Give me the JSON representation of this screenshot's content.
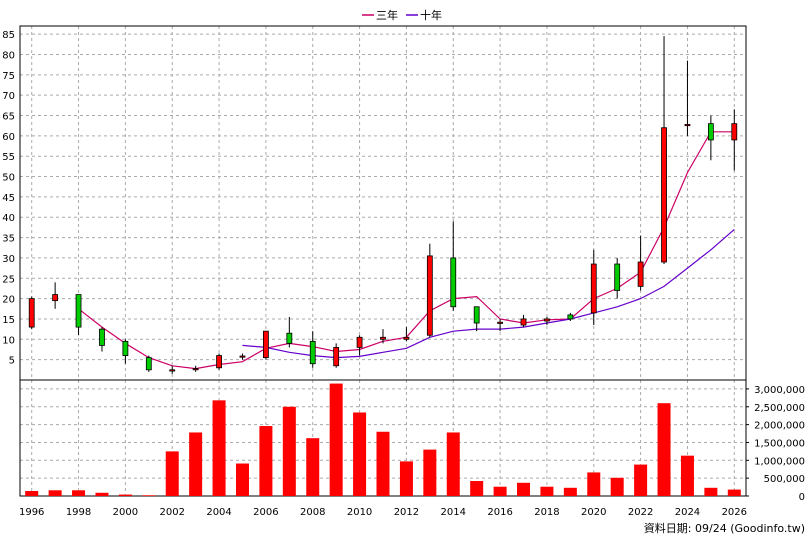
{
  "chart_data": {
    "type": "candlestick",
    "legend": [
      {
        "name": "三年",
        "color": "#cc0066"
      },
      {
        "name": "十年",
        "color": "#6600cc"
      }
    ],
    "footer": "資料日期: 09/24  (Goodinfo.tw)",
    "colors": {
      "up": "#ff0000",
      "down": "#00cc00",
      "grid": "#aaaaaa",
      "volume": "#ff0000"
    },
    "x_ticks": [
      "1996",
      "1998",
      "2000",
      "2002",
      "2004",
      "2006",
      "2008",
      "2010",
      "2012",
      "2014",
      "2016",
      "2018",
      "2020",
      "2022",
      "2024",
      "2026"
    ],
    "price_axis": {
      "ticks": [
        "5",
        "10",
        "15",
        "20",
        "25",
        "30",
        "35",
        "40",
        "45",
        "50",
        "55",
        "60",
        "65",
        "70",
        "75",
        "80",
        "85"
      ],
      "min": 0,
      "max": 87
    },
    "volume_axis": {
      "ticks": [
        "0",
        "500,000",
        "1,000,000",
        "1,500,000",
        "2,000,000",
        "2,500,000",
        "3,000,000"
      ],
      "min": 0,
      "max": 3250000
    },
    "candles": [
      {
        "year": 1996,
        "open": 20,
        "close": 13,
        "high": 20.5,
        "low": 12.5
      },
      {
        "year": 1997,
        "open": 21,
        "close": 19.5,
        "high": 24,
        "low": 17.5
      },
      {
        "year": 1998,
        "open": 13,
        "close": 21,
        "high": 21,
        "low": 11
      },
      {
        "year": 1999,
        "open": 8.5,
        "close": 12.5,
        "high": 13,
        "low": 7
      },
      {
        "year": 2000,
        "open": 6,
        "close": 9.5,
        "high": 10,
        "low": 4
      },
      {
        "year": 2001,
        "open": 2.5,
        "close": 5.5,
        "high": 6,
        "low": 2
      },
      {
        "year": 2002,
        "open": 2.5,
        "close": 2.2,
        "high": 3.5,
        "low": 1.5
      },
      {
        "year": 2003,
        "open": 2.8,
        "close": 2.7,
        "high": 3.5,
        "low": 2
      },
      {
        "year": 2004,
        "open": 6,
        "close": 3,
        "high": 6.5,
        "low": 2.5
      },
      {
        "year": 2005,
        "open": 5.9,
        "close": 5.8,
        "high": 6.5,
        "low": 5
      },
      {
        "year": 2006,
        "open": 12,
        "close": 5.5,
        "high": 12,
        "low": 5
      },
      {
        "year": 2007,
        "open": 9,
        "close": 11.5,
        "high": 15.5,
        "low": 8
      },
      {
        "year": 2008,
        "open": 4,
        "close": 9.5,
        "high": 12,
        "low": 3
      },
      {
        "year": 2009,
        "open": 8,
        "close": 3.5,
        "high": 9,
        "low": 3
      },
      {
        "year": 2010,
        "open": 10.5,
        "close": 8,
        "high": 11,
        "low": 6
      },
      {
        "year": 2011,
        "open": 10.5,
        "close": 10,
        "high": 12.5,
        "low": 9
      },
      {
        "year": 2012,
        "open": 10.5,
        "close": 10,
        "high": 13,
        "low": 9.5
      },
      {
        "year": 2013,
        "open": 30.5,
        "close": 11,
        "high": 33.5,
        "low": 10.5
      },
      {
        "year": 2014,
        "open": 18,
        "close": 30,
        "high": 39,
        "low": 17
      },
      {
        "year": 2015,
        "open": 14,
        "close": 18,
        "high": 18,
        "low": 12
      },
      {
        "year": 2016,
        "open": 14.2,
        "close": 14,
        "high": 15,
        "low": 12
      },
      {
        "year": 2017,
        "open": 15,
        "close": 13.5,
        "high": 16,
        "low": 13
      },
      {
        "year": 2018,
        "open": 15,
        "close": 14.5,
        "high": 15.5,
        "low": 13.5
      },
      {
        "year": 2019,
        "open": 15,
        "close": 16,
        "high": 16.5,
        "low": 14.5
      },
      {
        "year": 2020,
        "open": 28.5,
        "close": 16.5,
        "high": 32,
        "low": 13.5
      },
      {
        "year": 2021,
        "open": 22,
        "close": 28.5,
        "high": 30,
        "low": 20
      },
      {
        "year": 2022,
        "open": 29,
        "close": 23,
        "high": 35.5,
        "low": 22
      },
      {
        "year": 2023,
        "open": 62,
        "close": 29,
        "high": 84.5,
        "low": 28.5
      },
      {
        "year": 2024,
        "open": 62.8,
        "close": 62.5,
        "high": 78.5,
        "low": 60
      },
      {
        "year": 2025,
        "open": 59,
        "close": 63,
        "high": 65,
        "low": 54
      },
      {
        "year": 2026,
        "open": 63,
        "close": 59,
        "high": 66.5,
        "low": 51.5
      }
    ],
    "series": [
      {
        "name": "三年",
        "color": "#cc0066",
        "points": [
          [
            1998,
            17.5
          ],
          [
            1999,
            13
          ],
          [
            2000,
            9
          ],
          [
            2001,
            5.5
          ],
          [
            2002,
            3.5
          ],
          [
            2003,
            2.8
          ],
          [
            2004,
            3.8
          ],
          [
            2005,
            4.5
          ],
          [
            2006,
            7.8
          ],
          [
            2007,
            9
          ],
          [
            2008,
            8.2
          ],
          [
            2009,
            7
          ],
          [
            2010,
            7.5
          ],
          [
            2011,
            9.5
          ],
          [
            2012,
            10.5
          ],
          [
            2013,
            17
          ],
          [
            2014,
            20
          ],
          [
            2015,
            20.5
          ],
          [
            2016,
            15
          ],
          [
            2017,
            14
          ],
          [
            2018,
            14.8
          ],
          [
            2019,
            15
          ],
          [
            2020,
            20
          ],
          [
            2021,
            22.5
          ],
          [
            2022,
            26.5
          ],
          [
            2023,
            37.5
          ],
          [
            2024,
            51
          ],
          [
            2025,
            61
          ],
          [
            2026,
            61
          ]
        ]
      },
      {
        "name": "十年",
        "color": "#6600cc",
        "points": [
          [
            2005,
            8.5
          ],
          [
            2006,
            8
          ],
          [
            2007,
            6.8
          ],
          [
            2008,
            6
          ],
          [
            2009,
            5.5
          ],
          [
            2010,
            5.8
          ],
          [
            2011,
            6.8
          ],
          [
            2012,
            7.8
          ],
          [
            2013,
            10.5
          ],
          [
            2014,
            12
          ],
          [
            2015,
            12.5
          ],
          [
            2016,
            12.5
          ],
          [
            2017,
            13
          ],
          [
            2018,
            14
          ],
          [
            2019,
            15
          ],
          [
            2020,
            16.5
          ],
          [
            2021,
            18
          ],
          [
            2022,
            20
          ],
          [
            2023,
            23
          ],
          [
            2024,
            27.5
          ],
          [
            2025,
            32
          ],
          [
            2026,
            37
          ]
        ]
      }
    ],
    "volume": [
      {
        "year": 1996,
        "value": 140000
      },
      {
        "year": 1997,
        "value": 160000
      },
      {
        "year": 1998,
        "value": 160000
      },
      {
        "year": 1999,
        "value": 90000
      },
      {
        "year": 2000,
        "value": 40000
      },
      {
        "year": 2001,
        "value": 20000
      },
      {
        "year": 2002,
        "value": 1250000
      },
      {
        "year": 2003,
        "value": 1780000
      },
      {
        "year": 2004,
        "value": 2680000
      },
      {
        "year": 2005,
        "value": 910000
      },
      {
        "year": 2006,
        "value": 1960000
      },
      {
        "year": 2007,
        "value": 2500000
      },
      {
        "year": 2008,
        "value": 1620000
      },
      {
        "year": 2009,
        "value": 3150000
      },
      {
        "year": 2010,
        "value": 2340000
      },
      {
        "year": 2011,
        "value": 1800000
      },
      {
        "year": 2012,
        "value": 970000
      },
      {
        "year": 2013,
        "value": 1300000
      },
      {
        "year": 2014,
        "value": 1780000
      },
      {
        "year": 2015,
        "value": 420000
      },
      {
        "year": 2016,
        "value": 260000
      },
      {
        "year": 2017,
        "value": 370000
      },
      {
        "year": 2018,
        "value": 260000
      },
      {
        "year": 2019,
        "value": 230000
      },
      {
        "year": 2020,
        "value": 660000
      },
      {
        "year": 2021,
        "value": 510000
      },
      {
        "year": 2022,
        "value": 880000
      },
      {
        "year": 2023,
        "value": 2600000
      },
      {
        "year": 2024,
        "value": 1130000
      },
      {
        "year": 2025,
        "value": 230000
      },
      {
        "year": 2026,
        "value": 180000
      }
    ]
  }
}
